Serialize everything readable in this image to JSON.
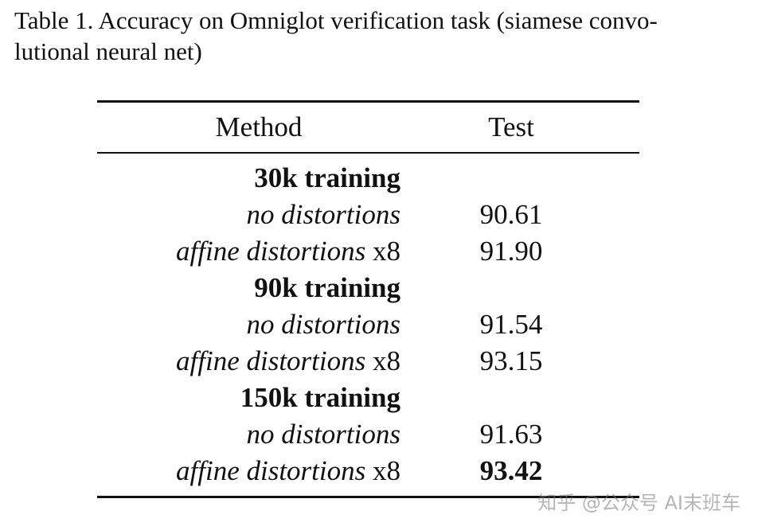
{
  "caption": [
    "Table 1. Accuracy on Omniglot verification task (siamese convo-",
    "lutional neural net)"
  ],
  "table": {
    "header": [
      "Method",
      "Test"
    ],
    "sections": [
      {
        "title": "30k training",
        "rows": [
          {
            "method": "no distortions",
            "test": "90.61"
          },
          {
            "method": "affine distortions",
            "suffix": "x8",
            "test": "91.90"
          }
        ]
      },
      {
        "title": "90k training",
        "rows": [
          {
            "method": "no distortions",
            "test": "91.54"
          },
          {
            "method": "affine distortions",
            "suffix": "x8",
            "test": "93.15"
          }
        ]
      },
      {
        "title": "150k training",
        "rows": [
          {
            "method": "no distortions",
            "test": "91.63"
          },
          {
            "method": "affine distortions",
            "suffix": "x8",
            "test": "93.42",
            "best": true
          }
        ]
      }
    ]
  },
  "watermark": "知乎 @公众号 AI末班车"
}
